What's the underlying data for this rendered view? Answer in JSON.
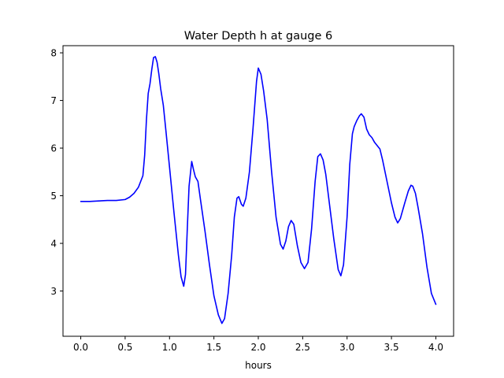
{
  "chart_data": {
    "type": "line",
    "title": "Water Depth h at gauge 6",
    "xlabel": "hours",
    "ylabel": "",
    "xlim": [
      -0.2,
      4.2
    ],
    "ylim": [
      2.05,
      8.15
    ],
    "xticks": [
      0.0,
      0.5,
      1.0,
      1.5,
      2.0,
      2.5,
      3.0,
      3.5,
      4.0
    ],
    "xtick_labels": [
      "0.0",
      "0.5",
      "1.0",
      "1.5",
      "2.0",
      "2.5",
      "3.0",
      "3.5",
      "4.0"
    ],
    "yticks": [
      3,
      4,
      5,
      6,
      7,
      8
    ],
    "ytick_labels": [
      "3",
      "4",
      "5",
      "6",
      "7",
      "8"
    ],
    "grid": false,
    "legend": "none",
    "line_color": "#0000ff",
    "series": [
      {
        "x": [
          0.0,
          0.1,
          0.2,
          0.3,
          0.4,
          0.5,
          0.55,
          0.6,
          0.65,
          0.7,
          0.72,
          0.74,
          0.76,
          0.78,
          0.8,
          0.82,
          0.84,
          0.86,
          0.88,
          0.9,
          0.93,
          0.96,
          1.0,
          1.05,
          1.1,
          1.13,
          1.16,
          1.18,
          1.2,
          1.22,
          1.25,
          1.27,
          1.29,
          1.32,
          1.35,
          1.4,
          1.45,
          1.5,
          1.55,
          1.59,
          1.62,
          1.66,
          1.7,
          1.73,
          1.76,
          1.78,
          1.81,
          1.83,
          1.86,
          1.9,
          1.94,
          1.98,
          2.0,
          2.03,
          2.06,
          2.1,
          2.15,
          2.2,
          2.25,
          2.28,
          2.31,
          2.34,
          2.37,
          2.4,
          2.44,
          2.48,
          2.52,
          2.56,
          2.6,
          2.64,
          2.67,
          2.7,
          2.73,
          2.76,
          2.8,
          2.85,
          2.9,
          2.93,
          2.96,
          3.0,
          3.03,
          3.06,
          3.08,
          3.11,
          3.14,
          3.16,
          3.19,
          3.22,
          3.25,
          3.28,
          3.31,
          3.34,
          3.37,
          3.4,
          3.45,
          3.5,
          3.54,
          3.57,
          3.6,
          3.65,
          3.69,
          3.72,
          3.74,
          3.77,
          3.8,
          3.85,
          3.9,
          3.95,
          4.0
        ],
        "y": [
          4.88,
          4.88,
          4.89,
          4.9,
          4.9,
          4.92,
          4.97,
          5.05,
          5.18,
          5.42,
          5.85,
          6.6,
          7.15,
          7.35,
          7.65,
          7.9,
          7.92,
          7.8,
          7.55,
          7.25,
          6.9,
          6.35,
          5.6,
          4.65,
          3.75,
          3.3,
          3.1,
          3.35,
          4.3,
          5.2,
          5.72,
          5.55,
          5.4,
          5.3,
          4.9,
          4.25,
          3.55,
          2.9,
          2.5,
          2.32,
          2.42,
          2.95,
          3.75,
          4.55,
          4.95,
          4.98,
          4.82,
          4.78,
          4.95,
          5.5,
          6.4,
          7.4,
          7.68,
          7.55,
          7.2,
          6.6,
          5.5,
          4.55,
          3.98,
          3.88,
          4.05,
          4.35,
          4.48,
          4.4,
          3.95,
          3.6,
          3.47,
          3.6,
          4.3,
          5.3,
          5.82,
          5.88,
          5.75,
          5.45,
          4.85,
          4.1,
          3.45,
          3.32,
          3.55,
          4.55,
          5.65,
          6.3,
          6.45,
          6.58,
          6.68,
          6.72,
          6.65,
          6.4,
          6.28,
          6.22,
          6.12,
          6.05,
          5.98,
          5.75,
          5.3,
          4.85,
          4.55,
          4.43,
          4.52,
          4.85,
          5.1,
          5.22,
          5.2,
          5.05,
          4.75,
          4.2,
          3.5,
          2.95,
          2.72
        ]
      }
    ]
  }
}
